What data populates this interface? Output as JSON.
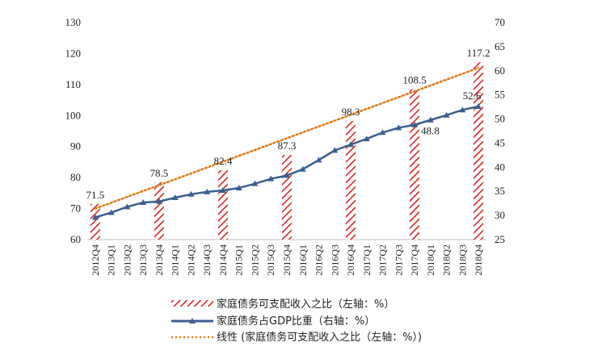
{
  "colors": {
    "bar_hatch": "#d62828",
    "line": "#3a5f8f",
    "trend": "#e07b1a",
    "axis": "#bfbfbf"
  },
  "chart_data": {
    "type": "bar+line",
    "categories": [
      "2012Q4",
      "2013Q1",
      "2013Q2",
      "2013Q3",
      "2013Q4",
      "2014Q1",
      "2014Q2",
      "2014Q3",
      "2014Q4",
      "2015Q1",
      "2015Q2",
      "2015Q3",
      "2015Q4",
      "2016Q1",
      "2016Q2",
      "2016Q3",
      "2016Q4",
      "2017Q1",
      "2017Q2",
      "2017Q3",
      "2017Q4",
      "2018Q1",
      "2018Q2",
      "2018Q3",
      "2018Q4"
    ],
    "bars": {
      "name": "家庭债务可支配收入之比（左轴：%）",
      "axis": "left",
      "values": [
        71.5,
        null,
        null,
        null,
        78.5,
        null,
        null,
        null,
        82.4,
        null,
        null,
        null,
        87.3,
        null,
        null,
        null,
        98.3,
        null,
        null,
        null,
        108.5,
        null,
        null,
        null,
        117.2
      ],
      "labels": [
        "71.5",
        "",
        "",
        "",
        "78.5",
        "",
        "",
        "",
        "82.4",
        "",
        "",
        "",
        "87.3",
        "",
        "",
        "",
        "98.3",
        "",
        "",
        "",
        "108.5",
        "",
        "",
        "",
        "117.2"
      ]
    },
    "line": {
      "name": "家庭债务占GDP比重（右轴：%）",
      "axis": "right",
      "values": [
        29.6,
        30.6,
        31.8,
        32.7,
        32.9,
        33.7,
        34.4,
        34.9,
        35.2,
        35.7,
        36.6,
        37.6,
        38.3,
        39.6,
        41.5,
        43.5,
        44.7,
        45.9,
        47.2,
        48.2,
        48.8,
        49.8,
        50.8,
        51.9,
        52.6
      ],
      "labels": [
        {
          "index": 20,
          "text": "48.8"
        },
        {
          "index": 24,
          "text": "52.6"
        }
      ]
    },
    "trend": {
      "name": "线性 (家庭债务可支配收入之比（左轴：%）)",
      "axis": "left",
      "start": 70.0,
      "end": 115.4
    },
    "y_left": {
      "min": 60,
      "max": 130,
      "ticks": [
        "60",
        "70",
        "80",
        "90",
        "100",
        "110",
        "120",
        "130"
      ]
    },
    "y_right": {
      "min": 25,
      "max": 70,
      "ticks": [
        "25",
        "30",
        "35",
        "40",
        "45",
        "50",
        "55",
        "60",
        "65",
        "70"
      ]
    },
    "legend_position": "bottom"
  }
}
